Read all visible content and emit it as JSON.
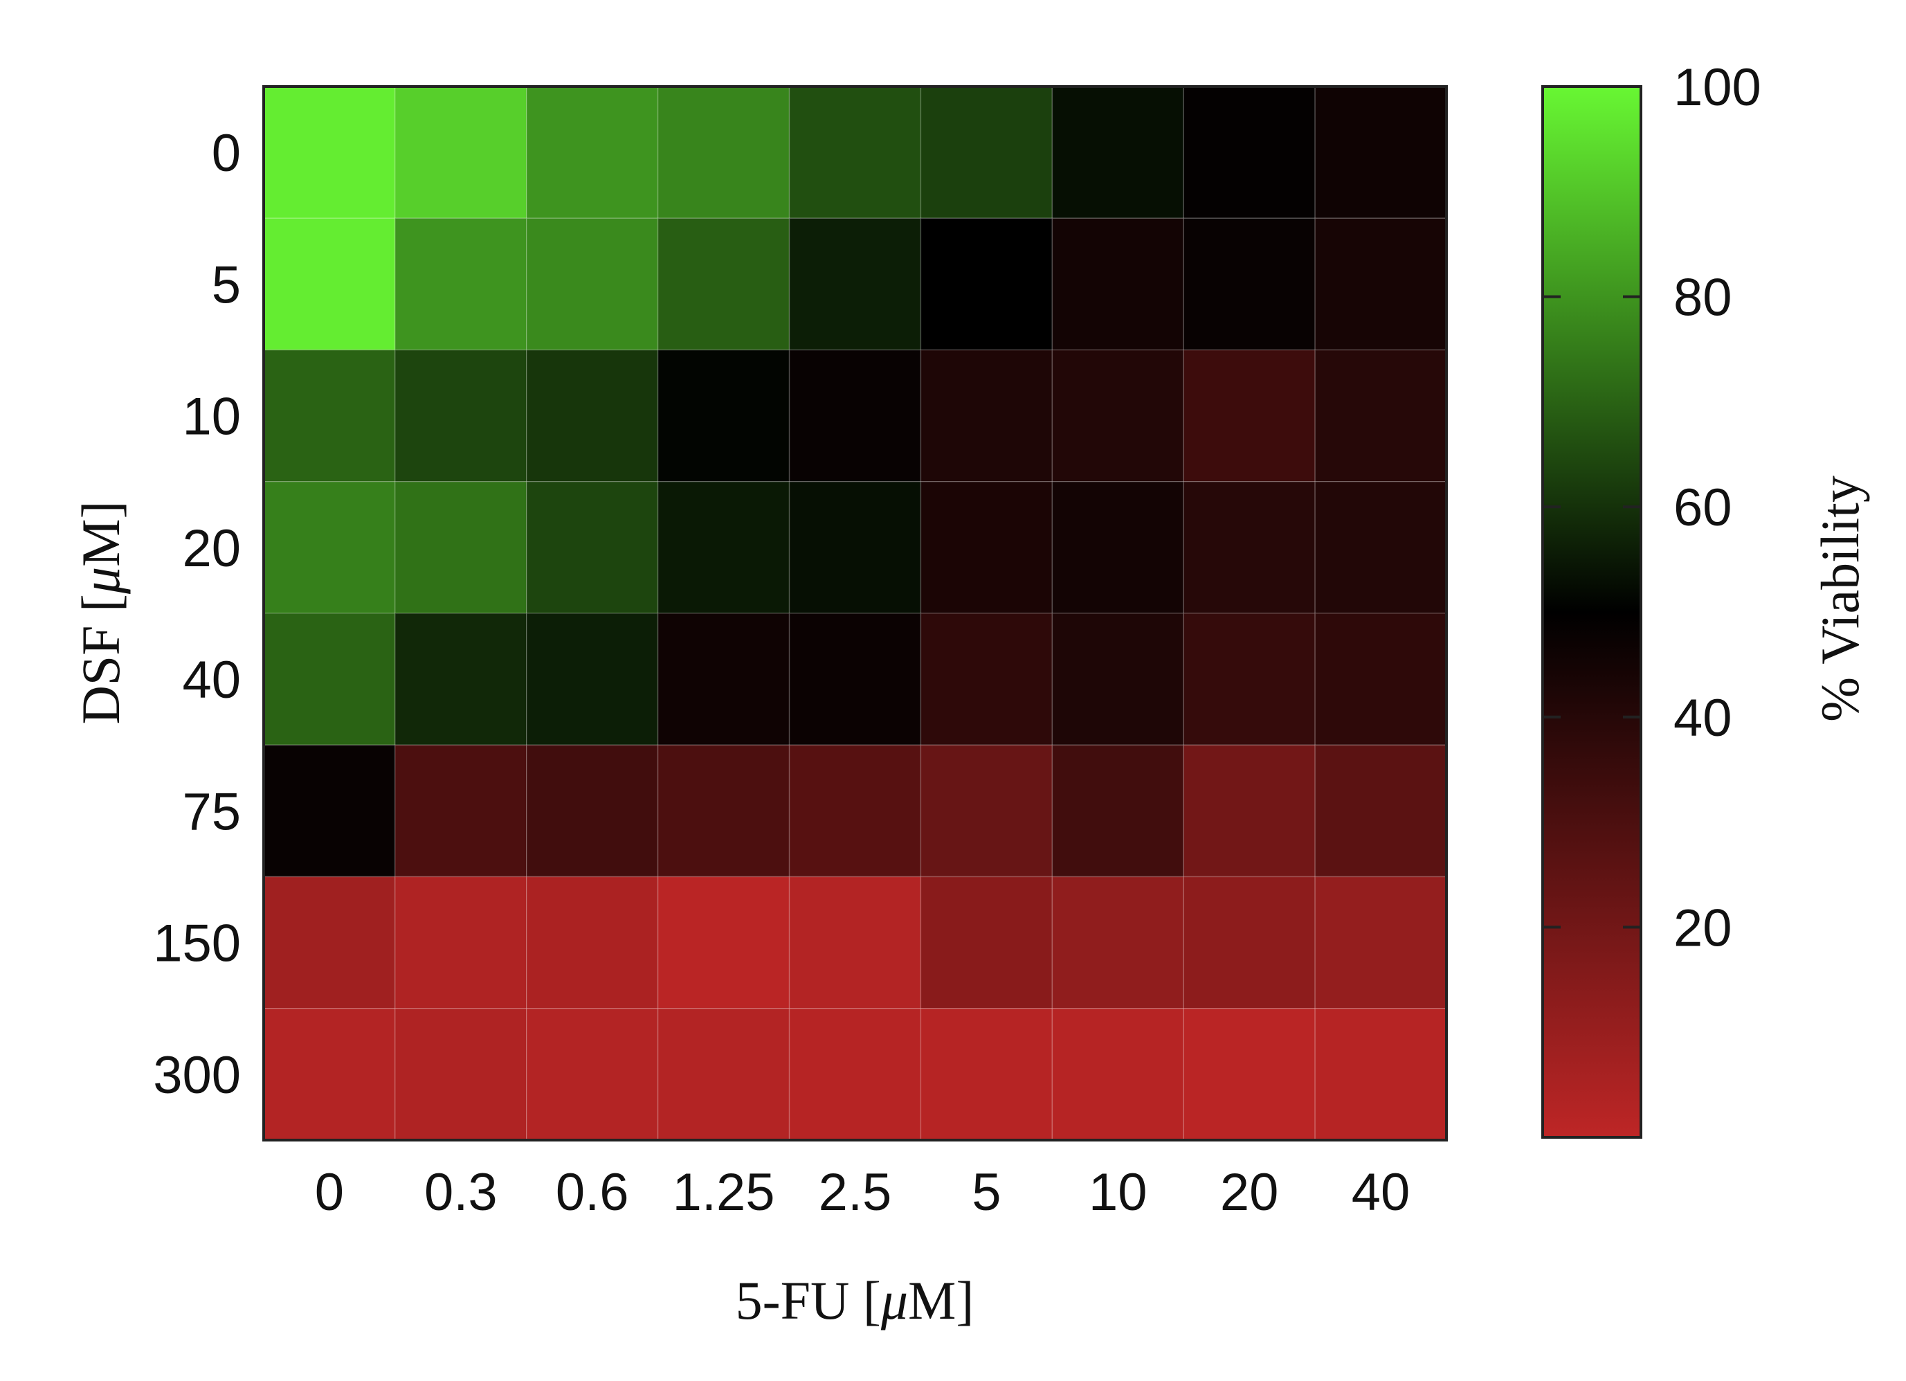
{
  "chart_data": {
    "type": "heatmap",
    "xlabel_prefix": "5-FU [",
    "xlabel_mu": "μ",
    "xlabel_suffix": "M]",
    "ylabel_prefix": "DSF [",
    "ylabel_mu": "μ",
    "ylabel_suffix": "M]",
    "x_categories": [
      "0",
      "0.3",
      "0.6",
      "1.25",
      "2.5",
      "5",
      "10",
      "20",
      "40"
    ],
    "y_categories": [
      "0",
      "5",
      "10",
      "20",
      "40",
      "75",
      "150",
      "300"
    ],
    "values": [
      [
        98,
        92,
        80,
        77,
        66,
        63,
        53,
        49,
        46
      ],
      [
        98,
        80,
        78,
        69,
        56,
        50,
        45,
        48,
        44
      ],
      [
        70,
        64,
        61,
        51,
        48,
        42,
        41,
        34,
        40
      ],
      [
        76,
        73,
        64,
        55,
        53,
        43,
        45,
        40,
        41
      ],
      [
        70,
        58,
        56,
        46,
        47,
        38,
        42,
        36,
        38
      ],
      [
        48,
        30,
        33,
        30,
        27,
        23,
        33,
        20,
        26
      ],
      [
        8,
        4,
        5,
        1,
        3,
        14,
        12,
        13,
        11
      ],
      [
        3,
        4,
        3,
        3,
        2,
        2,
        2,
        1,
        2
      ]
    ],
    "colorbar": {
      "label": "% Viability",
      "ticks": [
        "100",
        "80",
        "60",
        "40",
        "20"
      ],
      "tick_values": [
        100,
        80,
        60,
        40,
        20
      ],
      "range": [
        0,
        100
      ],
      "colors": {
        "low": "#be2626",
        "mid": "#000000",
        "high": "#68f733"
      }
    }
  }
}
